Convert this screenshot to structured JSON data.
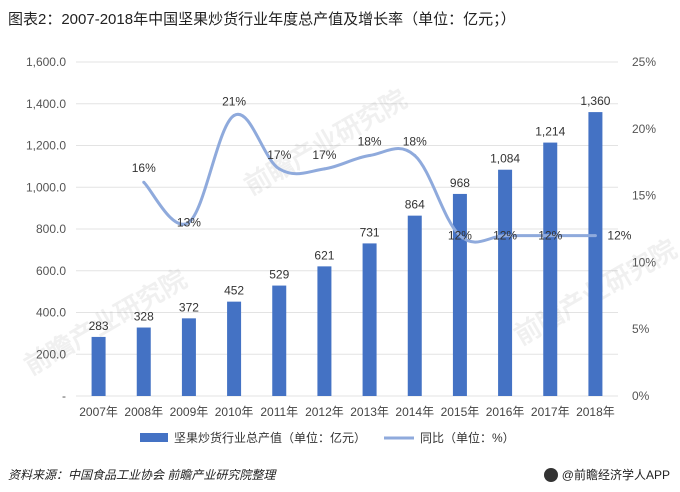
{
  "title": "图表2：2007-2018年中国坚果炒货行业年度总产值及增长率（单位：亿元；）",
  "source": "资料来源：中国食品工业协会 前瞻产业研究院整理",
  "brand": "@前瞻经济学人APP",
  "watermark": "前瞻产业研究院",
  "colors": {
    "bar": "#4472c4",
    "line": "#8faadc"
  },
  "chart_data": {
    "type": "bar+line",
    "categories": [
      "2007年",
      "2008年",
      "2009年",
      "2010年",
      "2011年",
      "2012年",
      "2013年",
      "2014年",
      "2015年",
      "2016年",
      "2017年",
      "2018年"
    ],
    "series": [
      {
        "name": "坚果炒货行业总产值（单位：亿元）",
        "type": "bar",
        "axis": "left",
        "values": [
          283,
          328,
          372,
          452,
          529,
          621,
          731,
          864,
          968,
          1084,
          1214,
          1360
        ],
        "labels": [
          "283",
          "328",
          "372",
          "452",
          "529",
          "621",
          "731",
          "864",
          "968",
          "1,084",
          "1,214",
          "1,360"
        ]
      },
      {
        "name": "同比（单位：%）",
        "type": "line",
        "axis": "right",
        "values": [
          null,
          16,
          13,
          21,
          17,
          17,
          18,
          18,
          12,
          12,
          12,
          12
        ],
        "labels": [
          "",
          "16%",
          "13%",
          "21%",
          "17%",
          "17%",
          "18%",
          "18%",
          "12%",
          "12%",
          "12%",
          "12%"
        ]
      }
    ],
    "left_axis": {
      "ylim": [
        0,
        1600
      ],
      "ticks": [
        "-",
        "200.0",
        "400.0",
        "600.0",
        "800.0",
        "1,000.0",
        "1,200.0",
        "1,400.0",
        "1,600.0"
      ]
    },
    "right_axis": {
      "ylim": [
        0,
        25
      ],
      "ticks": [
        "0%",
        "5%",
        "10%",
        "15%",
        "20%",
        "25%"
      ]
    },
    "legend_position": "bottom"
  }
}
